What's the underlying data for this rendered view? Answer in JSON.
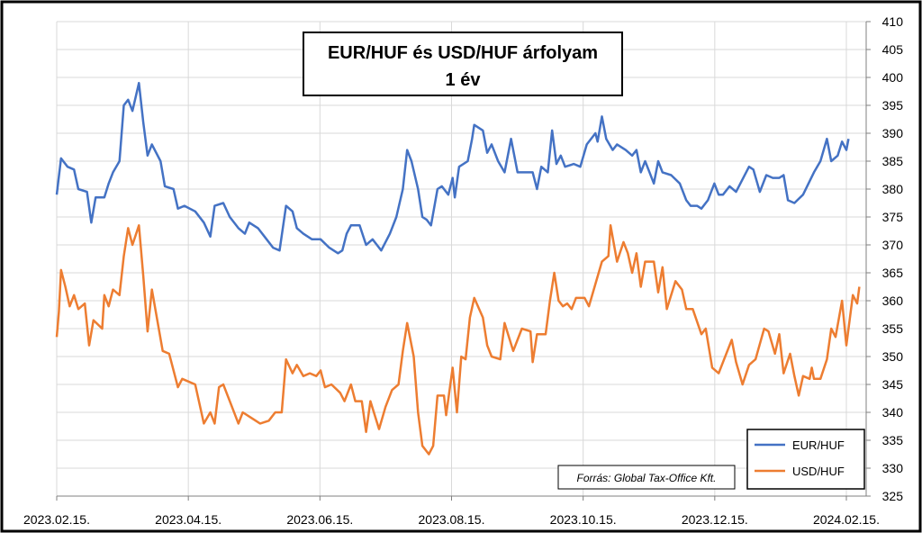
{
  "chart_data": {
    "type": "line",
    "title": "EUR/HUF és USD/HUF árfolyam",
    "subtitle": "1 év",
    "source": "Forrás: Global Tax-Office Kft.",
    "x_tick_labels": [
      "2023.02.15.",
      "2023.04.15.",
      "2023.06.15.",
      "2023.08.15.",
      "2023.10.15.",
      "2023.12.15.",
      "2024.02.15."
    ],
    "x_start": "2023-02-15",
    "x_end": "2024-02-15",
    "ylim": [
      325,
      410
    ],
    "ystep": 5,
    "grid": true,
    "legend_position": "bottom-right",
    "series": [
      {
        "name": "EUR/HUF",
        "color": "#4472C4",
        "points": [
          [
            "2023-02-15",
            379
          ],
          [
            "2023-02-17",
            385.5
          ],
          [
            "2023-02-20",
            384
          ],
          [
            "2023-02-23",
            383.5
          ],
          [
            "2023-02-25",
            380
          ],
          [
            "2023-03-01",
            379.5
          ],
          [
            "2023-03-03",
            374
          ],
          [
            "2023-03-05",
            378.5
          ],
          [
            "2023-03-09",
            378.5
          ],
          [
            "2023-03-11",
            381
          ],
          [
            "2023-03-13",
            383
          ],
          [
            "2023-03-16",
            385
          ],
          [
            "2023-03-18",
            395
          ],
          [
            "2023-03-20",
            396
          ],
          [
            "2023-03-22",
            394
          ],
          [
            "2023-03-25",
            399
          ],
          [
            "2023-03-27",
            392
          ],
          [
            "2023-03-29",
            386
          ],
          [
            "2023-03-31",
            388
          ],
          [
            "2023-04-04",
            385
          ],
          [
            "2023-04-06",
            380.5
          ],
          [
            "2023-04-10",
            380
          ],
          [
            "2023-04-12",
            376.5
          ],
          [
            "2023-04-15",
            377
          ],
          [
            "2023-04-20",
            376
          ],
          [
            "2023-04-24",
            374
          ],
          [
            "2023-04-27",
            371.5
          ],
          [
            "2023-04-29",
            377
          ],
          [
            "2023-05-03",
            377.5
          ],
          [
            "2023-05-06",
            375
          ],
          [
            "2023-05-10",
            373
          ],
          [
            "2023-05-13",
            372
          ],
          [
            "2023-05-15",
            374
          ],
          [
            "2023-05-19",
            373
          ],
          [
            "2023-05-22",
            371.5
          ],
          [
            "2023-05-26",
            369.5
          ],
          [
            "2023-05-29",
            369
          ],
          [
            "2023-06-01",
            377
          ],
          [
            "2023-06-04",
            376
          ],
          [
            "2023-06-06",
            373
          ],
          [
            "2023-06-09",
            372
          ],
          [
            "2023-06-13",
            371
          ],
          [
            "2023-06-17",
            371
          ],
          [
            "2023-06-21",
            369.5
          ],
          [
            "2023-06-25",
            368.5
          ],
          [
            "2023-06-27",
            369
          ],
          [
            "2023-06-29",
            372
          ],
          [
            "2023-07-01",
            373.5
          ],
          [
            "2023-07-05",
            373.5
          ],
          [
            "2023-07-08",
            370
          ],
          [
            "2023-07-11",
            371
          ],
          [
            "2023-07-13",
            370
          ],
          [
            "2023-07-15",
            369
          ],
          [
            "2023-07-19",
            372
          ],
          [
            "2023-07-22",
            375
          ],
          [
            "2023-07-25",
            380
          ],
          [
            "2023-07-27",
            387
          ],
          [
            "2023-07-29",
            385
          ],
          [
            "2023-08-01",
            380
          ],
          [
            "2023-08-03",
            375
          ],
          [
            "2023-08-05",
            374.5
          ],
          [
            "2023-08-07",
            373.5
          ],
          [
            "2023-08-10",
            380
          ],
          [
            "2023-08-12",
            380.5
          ],
          [
            "2023-08-15",
            379
          ],
          [
            "2023-08-17",
            382
          ],
          [
            "2023-08-18",
            378.5
          ],
          [
            "2023-08-20",
            384
          ],
          [
            "2023-08-24",
            385
          ],
          [
            "2023-08-26",
            389
          ],
          [
            "2023-08-27",
            391.5
          ],
          [
            "2023-08-31",
            390.5
          ],
          [
            "2023-09-02",
            386.5
          ],
          [
            "2023-09-04",
            388
          ],
          [
            "2023-09-07",
            385
          ],
          [
            "2023-09-10",
            383
          ],
          [
            "2023-09-13",
            389
          ],
          [
            "2023-09-16",
            383
          ],
          [
            "2023-09-19",
            383
          ],
          [
            "2023-09-23",
            383
          ],
          [
            "2023-09-25",
            380
          ],
          [
            "2023-09-27",
            384
          ],
          [
            "2023-09-30",
            383
          ],
          [
            "2023-10-02",
            390.5
          ],
          [
            "2023-10-04",
            384.5
          ],
          [
            "2023-10-06",
            386
          ],
          [
            "2023-10-08",
            384
          ],
          [
            "2023-10-12",
            384.5
          ],
          [
            "2023-10-15",
            384
          ],
          [
            "2023-10-18",
            388
          ],
          [
            "2023-10-22",
            390
          ],
          [
            "2023-10-23",
            388.5
          ],
          [
            "2023-10-25",
            393
          ],
          [
            "2023-10-27",
            389
          ],
          [
            "2023-10-30",
            387
          ],
          [
            "2023-11-01",
            388
          ],
          [
            "2023-11-05",
            387
          ],
          [
            "2023-11-08",
            386
          ],
          [
            "2023-11-10",
            387
          ],
          [
            "2023-11-12",
            383
          ],
          [
            "2023-11-14",
            385
          ],
          [
            "2023-11-16",
            383
          ],
          [
            "2023-11-18",
            381
          ],
          [
            "2023-11-20",
            385
          ],
          [
            "2023-11-22",
            383
          ],
          [
            "2023-11-26",
            382.5
          ],
          [
            "2023-11-30",
            381
          ],
          [
            "2023-12-03",
            378
          ],
          [
            "2023-12-05",
            377
          ],
          [
            "2023-12-08",
            377
          ],
          [
            "2023-12-10",
            376.5
          ],
          [
            "2023-12-13",
            378
          ],
          [
            "2023-12-16",
            381
          ],
          [
            "2023-12-18",
            379
          ],
          [
            "2023-12-20",
            379
          ],
          [
            "2023-12-23",
            380.5
          ],
          [
            "2023-12-26",
            379.5
          ],
          [
            "2024-01-01",
            384
          ],
          [
            "2024-01-03",
            383.5
          ],
          [
            "2024-01-06",
            379.5
          ],
          [
            "2024-01-09",
            382.5
          ],
          [
            "2024-01-12",
            382
          ],
          [
            "2024-01-15",
            382
          ],
          [
            "2024-01-17",
            382.5
          ],
          [
            "2024-01-19",
            378
          ],
          [
            "2024-01-22",
            377.5
          ],
          [
            "2024-01-26",
            379
          ],
          [
            "2024-01-31",
            383
          ],
          [
            "2024-02-03",
            385
          ],
          [
            "2024-02-06",
            389
          ],
          [
            "2024-02-08",
            385
          ],
          [
            "2024-02-11",
            386
          ],
          [
            "2024-02-13",
            388.5
          ],
          [
            "2024-02-15",
            387
          ],
          [
            "2024-02-16",
            389
          ]
        ]
      },
      {
        "name": "USD/HUF",
        "color": "#ED7D31",
        "points": [
          [
            "2023-02-15",
            353.5
          ],
          [
            "2023-02-16",
            358
          ],
          [
            "2023-02-17",
            365.5
          ],
          [
            "2023-02-19",
            362.5
          ],
          [
            "2023-02-21",
            359
          ],
          [
            "2023-02-23",
            361
          ],
          [
            "2023-02-25",
            358.5
          ],
          [
            "2023-02-28",
            359.5
          ],
          [
            "2023-03-02",
            352
          ],
          [
            "2023-03-04",
            356.5
          ],
          [
            "2023-03-08",
            355
          ],
          [
            "2023-03-09",
            361
          ],
          [
            "2023-03-11",
            359
          ],
          [
            "2023-03-13",
            362
          ],
          [
            "2023-03-16",
            361
          ],
          [
            "2023-03-18",
            368
          ],
          [
            "2023-03-20",
            373
          ],
          [
            "2023-03-22",
            370
          ],
          [
            "2023-03-25",
            373.5
          ],
          [
            "2023-03-27",
            364.5
          ],
          [
            "2023-03-29",
            354.5
          ],
          [
            "2023-03-31",
            362
          ],
          [
            "2023-04-05",
            351
          ],
          [
            "2023-04-08",
            350.5
          ],
          [
            "2023-04-12",
            344.5
          ],
          [
            "2023-04-14",
            346
          ],
          [
            "2023-04-20",
            345
          ],
          [
            "2023-04-24",
            338
          ],
          [
            "2023-04-27",
            340
          ],
          [
            "2023-04-29",
            338
          ],
          [
            "2023-05-01",
            344.5
          ],
          [
            "2023-05-03",
            345
          ],
          [
            "2023-05-06",
            342
          ],
          [
            "2023-05-10",
            338
          ],
          [
            "2023-05-12",
            340
          ],
          [
            "2023-05-16",
            339
          ],
          [
            "2023-05-20",
            338
          ],
          [
            "2023-05-24",
            338.5
          ],
          [
            "2023-05-27",
            340
          ],
          [
            "2023-05-30",
            340
          ],
          [
            "2023-06-01",
            349.5
          ],
          [
            "2023-06-04",
            347
          ],
          [
            "2023-06-06",
            348.5
          ],
          [
            "2023-06-09",
            346.5
          ],
          [
            "2023-06-12",
            347
          ],
          [
            "2023-06-15",
            346.5
          ],
          [
            "2023-06-17",
            347.5
          ],
          [
            "2023-06-19",
            344.5
          ],
          [
            "2023-06-22",
            345
          ],
          [
            "2023-06-26",
            343.5
          ],
          [
            "2023-06-28",
            342
          ],
          [
            "2023-07-01",
            345
          ],
          [
            "2023-07-03",
            342
          ],
          [
            "2023-07-06",
            342
          ],
          [
            "2023-07-08",
            336.5
          ],
          [
            "2023-07-10",
            342
          ],
          [
            "2023-07-14",
            337
          ],
          [
            "2023-07-17",
            341
          ],
          [
            "2023-07-20",
            344
          ],
          [
            "2023-07-23",
            345
          ],
          [
            "2023-07-25",
            351
          ],
          [
            "2023-07-27",
            356
          ],
          [
            "2023-07-30",
            350
          ],
          [
            "2023-08-01",
            340
          ],
          [
            "2023-08-03",
            334
          ],
          [
            "2023-08-06",
            332.5
          ],
          [
            "2023-08-08",
            334
          ],
          [
            "2023-08-10",
            343
          ],
          [
            "2023-08-13",
            343
          ],
          [
            "2023-08-14",
            339.5
          ],
          [
            "2023-08-17",
            348
          ],
          [
            "2023-08-19",
            340
          ],
          [
            "2023-08-21",
            350
          ],
          [
            "2023-08-23",
            349.5
          ],
          [
            "2023-08-25",
            357
          ],
          [
            "2023-08-27",
            360.5
          ],
          [
            "2023-08-31",
            357
          ],
          [
            "2023-09-02",
            352
          ],
          [
            "2023-09-04",
            350
          ],
          [
            "2023-09-08",
            349.5
          ],
          [
            "2023-09-10",
            356
          ],
          [
            "2023-09-14",
            351
          ],
          [
            "2023-09-18",
            355
          ],
          [
            "2023-09-22",
            354.5
          ],
          [
            "2023-09-23",
            349
          ],
          [
            "2023-09-25",
            354
          ],
          [
            "2023-09-29",
            354
          ],
          [
            "2023-10-01",
            360
          ],
          [
            "2023-10-03",
            365
          ],
          [
            "2023-10-05",
            360
          ],
          [
            "2023-10-07",
            359
          ],
          [
            "2023-10-09",
            359.5
          ],
          [
            "2023-10-11",
            358.5
          ],
          [
            "2023-10-13",
            360.5
          ],
          [
            "2023-10-17",
            360.5
          ],
          [
            "2023-10-19",
            359
          ],
          [
            "2023-10-22",
            363
          ],
          [
            "2023-10-25",
            367
          ],
          [
            "2023-10-28",
            368
          ],
          [
            "2023-10-29",
            373.5
          ],
          [
            "2023-11-01",
            367
          ],
          [
            "2023-11-04",
            370.5
          ],
          [
            "2023-11-06",
            368.5
          ],
          [
            "2023-11-08",
            365
          ],
          [
            "2023-11-10",
            368.5
          ],
          [
            "2023-11-12",
            362.5
          ],
          [
            "2023-11-14",
            367
          ],
          [
            "2023-11-18",
            367
          ],
          [
            "2023-11-20",
            361.5
          ],
          [
            "2023-11-22",
            366
          ],
          [
            "2023-11-24",
            358.5
          ],
          [
            "2023-11-28",
            363.5
          ],
          [
            "2023-12-01",
            362
          ],
          [
            "2023-12-03",
            358.5
          ],
          [
            "2023-12-06",
            358.5
          ],
          [
            "2023-12-10",
            354
          ],
          [
            "2023-12-12",
            355
          ],
          [
            "2023-12-15",
            348
          ],
          [
            "2023-12-18",
            347
          ],
          [
            "2023-12-20",
            349
          ],
          [
            "2023-12-24",
            353
          ],
          [
            "2023-12-26",
            349
          ],
          [
            "2023-12-29",
            345
          ],
          [
            "2024-01-01",
            348.5
          ],
          [
            "2024-01-04",
            349.5
          ],
          [
            "2024-01-08",
            355
          ],
          [
            "2024-01-10",
            354.5
          ],
          [
            "2024-01-13",
            350.5
          ],
          [
            "2024-01-15",
            354
          ],
          [
            "2024-01-17",
            347
          ],
          [
            "2024-01-20",
            350.5
          ],
          [
            "2024-01-22",
            346.5
          ],
          [
            "2024-01-24",
            343
          ],
          [
            "2024-01-26",
            346.5
          ],
          [
            "2024-01-29",
            346
          ],
          [
            "2024-01-30",
            348
          ],
          [
            "2024-01-31",
            346
          ],
          [
            "2024-02-03",
            346
          ],
          [
            "2024-02-06",
            349.5
          ],
          [
            "2024-02-08",
            355
          ],
          [
            "2024-02-10",
            353.5
          ],
          [
            "2024-02-13",
            360
          ],
          [
            "2024-02-15",
            352
          ],
          [
            "2024-02-18",
            361
          ],
          [
            "2024-02-20",
            359.5
          ],
          [
            "2024-02-21",
            362.5
          ]
        ]
      }
    ]
  }
}
